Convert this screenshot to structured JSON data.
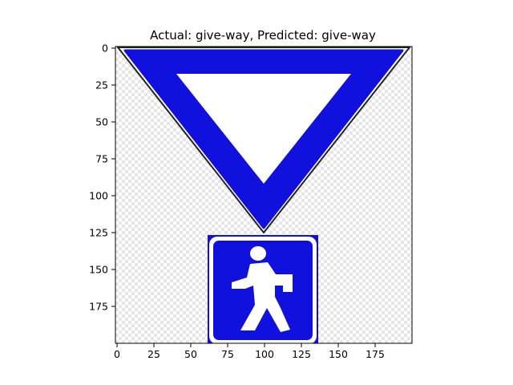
{
  "figure": {
    "title": "Actual: give-way, Predicted: give-way"
  },
  "axes": {
    "x_ticks": [
      {
        "value": 0,
        "label": "0"
      },
      {
        "value": 25,
        "label": "25"
      },
      {
        "value": 50,
        "label": "50"
      },
      {
        "value": 75,
        "label": "75"
      },
      {
        "value": 100,
        "label": "100"
      },
      {
        "value": 125,
        "label": "125"
      },
      {
        "value": 150,
        "label": "150"
      },
      {
        "value": 175,
        "label": "175"
      }
    ],
    "y_ticks": [
      {
        "value": 0,
        "label": "0"
      },
      {
        "value": 25,
        "label": "25"
      },
      {
        "value": 50,
        "label": "50"
      },
      {
        "value": 75,
        "label": "75"
      },
      {
        "value": 100,
        "label": "100"
      },
      {
        "value": 125,
        "label": "125"
      },
      {
        "value": 150,
        "label": "150"
      },
      {
        "value": 175,
        "label": "175"
      }
    ]
  },
  "image": {
    "subject": "give-way sign above pedestrian crossing sign",
    "colors": {
      "sign_blue": "#1111dd",
      "sign_white": "#ffffff",
      "outline": "#222222",
      "checker_light": "#ffffff",
      "checker_dark": "#e6e6e6"
    }
  }
}
